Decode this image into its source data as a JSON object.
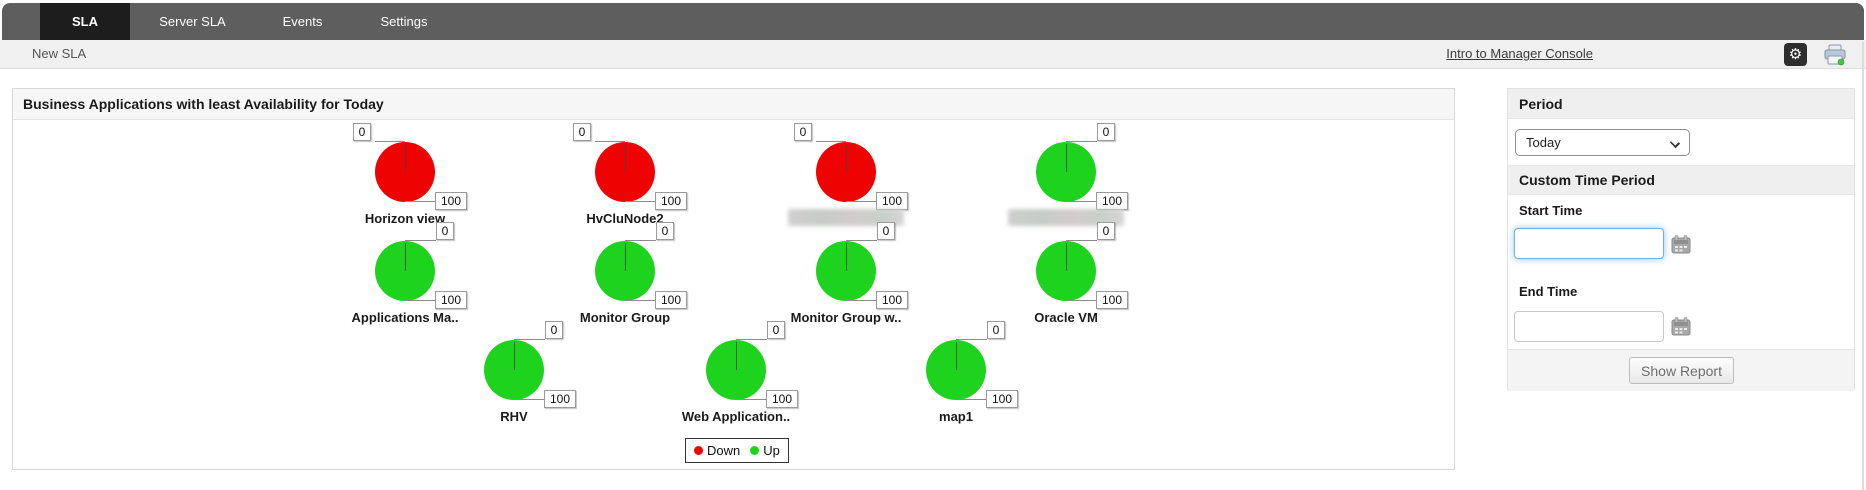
{
  "nav": {
    "tabs": [
      {
        "label": "SLA",
        "active": true
      },
      {
        "label": "Server SLA",
        "active": false
      },
      {
        "label": "Events",
        "active": false
      },
      {
        "label": "Settings",
        "active": false
      }
    ]
  },
  "breadcrumb": {
    "new_sla_link": "New SLA",
    "intro_link": "Intro to Manager Console",
    "gear_glyph": "⚙"
  },
  "panel": {
    "title": "Business Applications with least Availability for Today"
  },
  "chart_data": {
    "type": "pie",
    "title": "Business Applications with least Availability for Today",
    "scale_min": "0",
    "scale_max": "100",
    "note": "Each gauge is a full pie (100%) of a single status color with a needle at 12 o'clock; two labels are blurred/redacted in the source image",
    "gauges": [
      {
        "label": "Horizon view",
        "status": "down",
        "value_pct": 100,
        "row": 1,
        "redacted": false
      },
      {
        "label": "HvCluNode2",
        "status": "down",
        "value_pct": 100,
        "row": 1,
        "redacted": false
      },
      {
        "label": "",
        "status": "down",
        "value_pct": 100,
        "row": 1,
        "redacted": true
      },
      {
        "label": "",
        "status": "up",
        "value_pct": 100,
        "row": 1,
        "redacted": true
      },
      {
        "label": "Applications Ma..",
        "status": "up",
        "value_pct": 100,
        "row": 2,
        "redacted": false
      },
      {
        "label": "Monitor Group",
        "status": "up",
        "value_pct": 100,
        "row": 2,
        "redacted": false
      },
      {
        "label": "Monitor Group w..",
        "status": "up",
        "value_pct": 100,
        "row": 2,
        "redacted": false
      },
      {
        "label": "Oracle VM",
        "status": "up",
        "value_pct": 100,
        "row": 2,
        "redacted": false
      },
      {
        "label": "RHV",
        "status": "up",
        "value_pct": 100,
        "row": 3,
        "redacted": false
      },
      {
        "label": "Web Application..",
        "status": "up",
        "value_pct": 100,
        "row": 3,
        "redacted": false
      },
      {
        "label": "map1",
        "status": "up",
        "value_pct": 100,
        "row": 3,
        "redacted": false
      }
    ],
    "legend": [
      {
        "label": "Down",
        "color": "#ee0202"
      },
      {
        "label": "Up",
        "color": "#1ed31e"
      }
    ],
    "legend_position": "bottom-center"
  },
  "sidebar": {
    "period_header": "Period",
    "period_value": "Today",
    "custom_header": "Custom Time Period",
    "start_label": "Start Time",
    "start_value": "",
    "end_label": "End Time",
    "end_value": "",
    "show_report_label": "Show Report"
  },
  "colors": {
    "down": "#ee0202",
    "up": "#1ed31e",
    "nav_bg": "#5e5e5e",
    "nav_active": "#1d1d1d"
  }
}
